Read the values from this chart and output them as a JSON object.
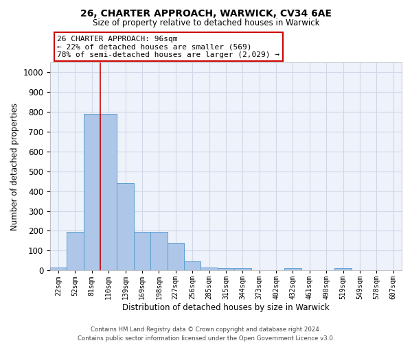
{
  "title": "26, CHARTER APPROACH, WARWICK, CV34 6AE",
  "subtitle": "Size of property relative to detached houses in Warwick",
  "xlabel": "Distribution of detached houses by size in Warwick",
  "ylabel": "Number of detached properties",
  "categories": [
    "22sqm",
    "52sqm",
    "81sqm",
    "110sqm",
    "139sqm",
    "169sqm",
    "198sqm",
    "227sqm",
    "256sqm",
    "285sqm",
    "315sqm",
    "344sqm",
    "373sqm",
    "402sqm",
    "432sqm",
    "461sqm",
    "490sqm",
    "519sqm",
    "549sqm",
    "578sqm",
    "607sqm"
  ],
  "values": [
    15,
    195,
    790,
    790,
    440,
    195,
    195,
    140,
    45,
    15,
    10,
    10,
    0,
    0,
    10,
    0,
    0,
    10,
    0,
    0,
    0
  ],
  "bar_color": "#aec6e8",
  "bar_edge_color": "#5a9fd4",
  "vline_color": "#cc0000",
  "vline_x": 2.5,
  "ylim": [
    0,
    1050
  ],
  "yticks": [
    0,
    100,
    200,
    300,
    400,
    500,
    600,
    700,
    800,
    900,
    1000
  ],
  "annotation_line1": "26 CHARTER APPROACH: 96sqm",
  "annotation_line2": "← 22% of detached houses are smaller (569)",
  "annotation_line3": "78% of semi-detached houses are larger (2,029) →",
  "annotation_box_color": "#ffffff",
  "annotation_box_edge": "#cc0000",
  "footer_line1": "Contains HM Land Registry data © Crown copyright and database right 2024.",
  "footer_line2": "Contains public sector information licensed under the Open Government Licence v3.0.",
  "grid_color": "#d0d8e8",
  "background_color": "#eef2fa"
}
